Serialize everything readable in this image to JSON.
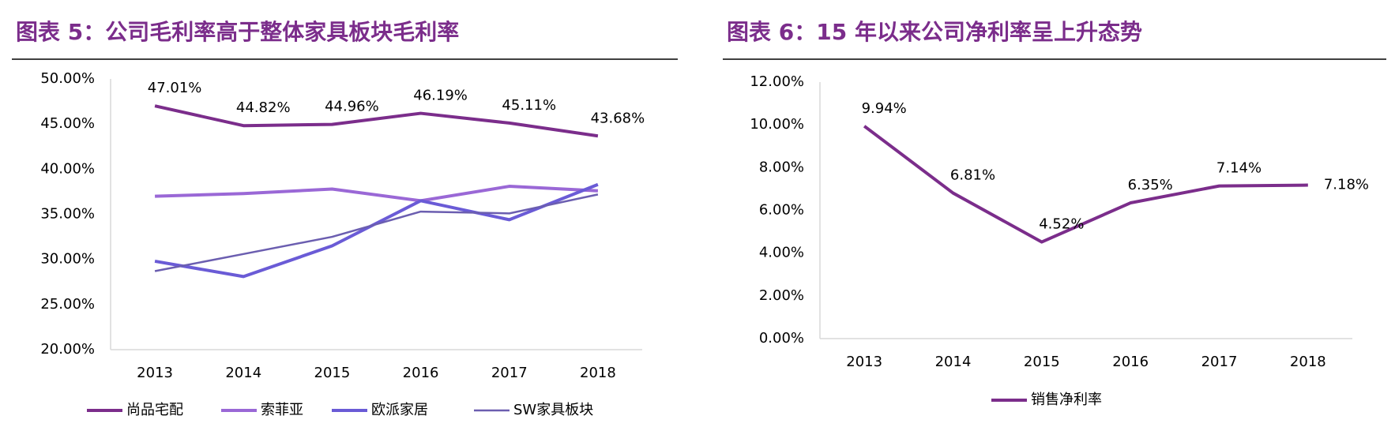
{
  "chart_data": [
    {
      "type": "line",
      "title": "图表 5：公司毛利率高于整体家具板块毛利率",
      "categories": [
        "2013",
        "2014",
        "2015",
        "2016",
        "2017",
        "2018"
      ],
      "ylim": [
        20,
        50
      ],
      "yticks": [
        {
          "value": 20,
          "label": "20.00%"
        },
        {
          "value": 25,
          "label": "25.00%"
        },
        {
          "value": 30,
          "label": "30.00%"
        },
        {
          "value": 35,
          "label": "35.00%"
        },
        {
          "value": 40,
          "label": "40.00%"
        },
        {
          "value": 45,
          "label": "45.00%"
        },
        {
          "value": 50,
          "label": "50.00%"
        }
      ],
      "series": [
        {
          "name": "尚品宅配",
          "color": "#7b2d8b",
          "width": 4,
          "values": [
            47.01,
            44.82,
            44.96,
            46.19,
            45.11,
            43.68
          ],
          "value_labels": [
            "47.01%",
            "44.82%",
            "44.96%",
            "46.19%",
            "45.11%",
            "43.68%"
          ]
        },
        {
          "name": "索菲亚",
          "color": "#9a68d6",
          "width": 4,
          "values": [
            37.0,
            37.3,
            37.8,
            36.5,
            38.1,
            37.6
          ]
        },
        {
          "name": "欧派家居",
          "color": "#6a5bd6",
          "width": 4,
          "values": [
            29.8,
            28.1,
            31.5,
            36.5,
            34.4,
            38.3
          ]
        },
        {
          "name": "SW家具板块",
          "color": "#6b5eb0",
          "width": 2.5,
          "values": [
            28.7,
            30.6,
            32.5,
            35.3,
            35.1,
            37.2
          ]
        }
      ]
    },
    {
      "type": "line",
      "title": "图表 6：15 年以来公司净利率呈上升态势",
      "categories": [
        "2013",
        "2014",
        "2015",
        "2016",
        "2017",
        "2018"
      ],
      "ylim": [
        0,
        12
      ],
      "yticks": [
        {
          "value": 0,
          "label": "0.00%"
        },
        {
          "value": 2,
          "label": "2.00%"
        },
        {
          "value": 4,
          "label": "4.00%"
        },
        {
          "value": 6,
          "label": "6.00%"
        },
        {
          "value": 8,
          "label": "8.00%"
        },
        {
          "value": 10,
          "label": "10.00%"
        },
        {
          "value": 12,
          "label": "12.00%"
        }
      ],
      "series": [
        {
          "name": "销售净利率",
          "color": "#7b2d8b",
          "width": 4,
          "values": [
            9.94,
            6.81,
            4.52,
            6.35,
            7.14,
            7.18
          ],
          "value_labels": [
            "9.94%",
            "6.81%",
            "4.52%",
            "6.35%",
            "7.14%",
            "7.18%"
          ]
        }
      ]
    }
  ]
}
